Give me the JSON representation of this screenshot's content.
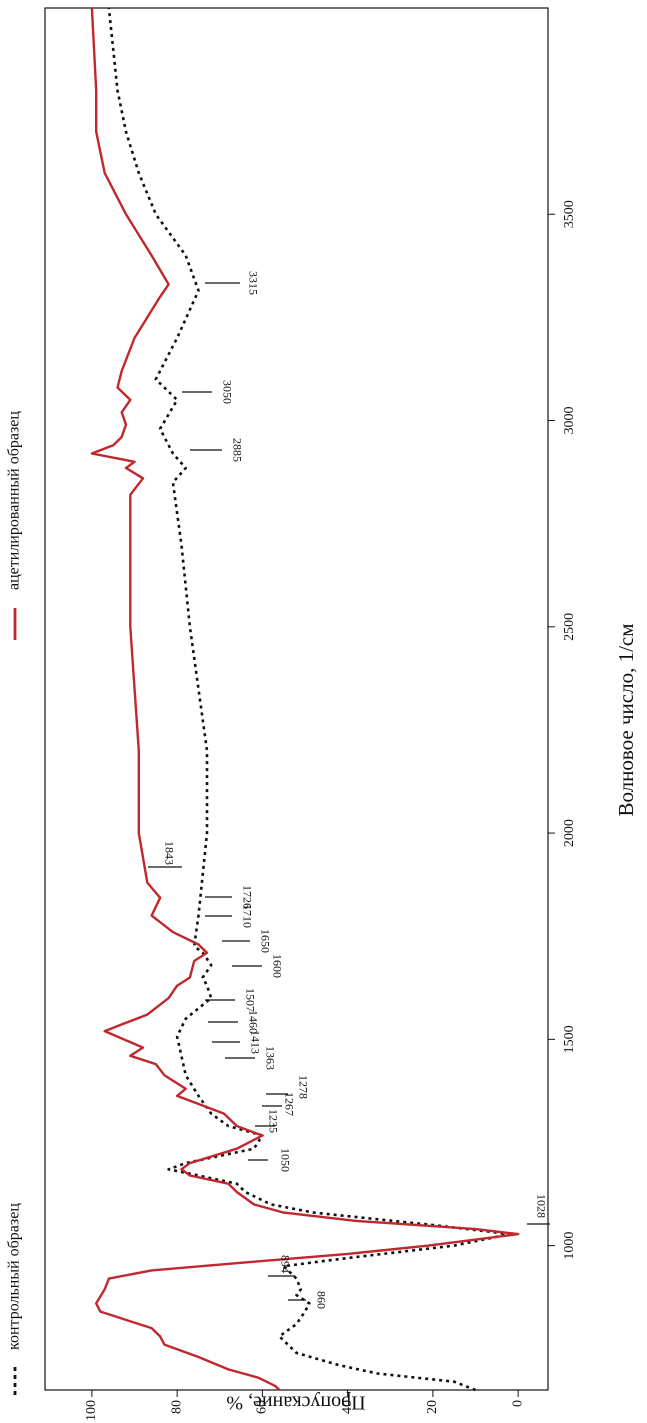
{
  "chart_data": {
    "type": "line",
    "x_label": "Волновое число, 1/см",
    "y_label": "Пропускание, %",
    "xlim": [
      650,
      4000
    ],
    "ylim": [
      -7,
      111
    ],
    "xticks": [
      1000,
      1500,
      2000,
      2500,
      3000,
      3500
    ],
    "yticks": [
      0,
      20,
      40,
      60,
      80,
      100
    ],
    "series": [
      {
        "name": "контрольный образец",
        "color": "#111111",
        "dash": true,
        "x": [
          650,
          670,
          690,
          710,
          740,
          780,
          810,
          840,
          860,
          880,
          894,
          920,
          950,
          970,
          1000,
          1028,
          1050,
          1080,
          1100,
          1130,
          1150,
          1170,
          1185,
          1200,
          1235,
          1267,
          1290,
          1320,
          1363,
          1413,
          1460,
          1507,
          1550,
          1600,
          1630,
          1650,
          1680,
          1710,
          1726,
          1800,
          2000,
          2200,
          2500,
          2700,
          2850,
          2885,
          2920,
          2980,
          3050,
          3100,
          3200,
          3315,
          3400,
          3500,
          3600,
          3700,
          3800,
          4000
        ],
        "values": [
          10,
          15,
          33,
          42,
          52,
          56,
          52,
          50,
          49,
          52,
          51,
          52,
          55,
          40,
          15,
          2,
          20,
          48,
          58,
          64,
          66,
          75,
          82,
          78,
          62,
          60,
          68,
          72,
          75,
          78,
          79,
          80,
          78,
          72,
          73,
          74,
          72,
          74,
          76,
          75,
          73,
          73,
          77,
          79,
          81,
          78,
          81,
          84,
          80,
          85,
          80,
          75,
          78,
          85,
          89,
          92,
          94,
          96
        ]
      },
      {
        "name": "ацетилированный образец",
        "color": "#c0282d",
        "dash": false,
        "x": [
          650,
          660,
          680,
          700,
          730,
          760,
          780,
          800,
          820,
          840,
          860,
          894,
          920,
          940,
          960,
          980,
          1000,
          1028,
          1040,
          1060,
          1080,
          1100,
          1130,
          1150,
          1170,
          1185,
          1200,
          1235,
          1267,
          1278,
          1290,
          1320,
          1363,
          1380,
          1413,
          1440,
          1460,
          1480,
          1520,
          1540,
          1560,
          1600,
          1630,
          1650,
          1690,
          1710,
          1730,
          1760,
          1800,
          1843,
          1880,
          2000,
          2200,
          2500,
          2700,
          2820,
          2860,
          2885,
          2900,
          2920,
          2940,
          2960,
          2990,
          3020,
          3050,
          3080,
          3120,
          3200,
          3300,
          3330,
          3400,
          3500,
          3600,
          3700,
          3800,
          4000
        ],
        "values": [
          56,
          57,
          61,
          68,
          75,
          83,
          84,
          86,
          92,
          98,
          99,
          97,
          96,
          86,
          63,
          40,
          21,
          0,
          10,
          38,
          55,
          62,
          66,
          68,
          77,
          79,
          77,
          66,
          60,
          63,
          66,
          69,
          80,
          78,
          83,
          85,
          91,
          88,
          97,
          92,
          87,
          82,
          80,
          77,
          76,
          73,
          75,
          81,
          86,
          84,
          87,
          89,
          89,
          91,
          91,
          91,
          88,
          92,
          90,
          100,
          95,
          93,
          92,
          93,
          91,
          94,
          93,
          90,
          84,
          82,
          86,
          92,
          97,
          99,
          99,
          100
        ]
      }
    ],
    "annotations": [
      "3315",
      "3050",
      "2885",
      "1843",
      "1726",
      "1710",
      "1650",
      "1600",
      "1507",
      "1460",
      "1413",
      "1363",
      "1278",
      "1267",
      "1235",
      "1050",
      "1028",
      "894",
      "860"
    ]
  }
}
